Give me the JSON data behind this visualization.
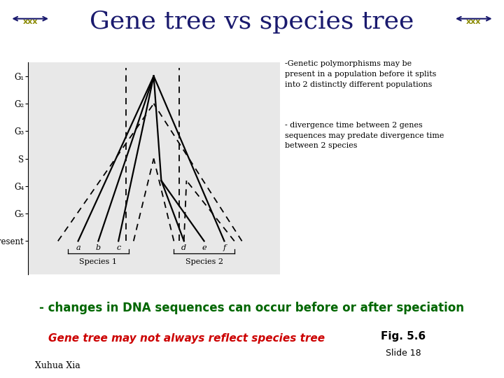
{
  "title": "Gene tree vs species tree",
  "title_color": "#1a1a6e",
  "title_fontsize": 26,
  "bg_color": "#ffffff",
  "teal_bar_color": "#008080",
  "purple_bar_color": "#9400a8",
  "bottom_text_green": "- changes in DNA sequences can occur before or after speciation",
  "bottom_text_red": "Gene tree may not always reflect species tree",
  "fig_label": "Fig. 5.6",
  "slide_label": "Slide 18",
  "author": "Xuhua Xia",
  "annotation1": "-Genetic polymorphisms may be\npresent in a population before it splits\ninto 2 distinctly different populations",
  "annotation2": "- divergence time between 2 genes\nsequences may predate divergence time\nbetween 2 species",
  "ytick_labels": [
    "G₁",
    "G₂",
    "G₃",
    "S",
    "G₄",
    "G₅",
    "Present"
  ],
  "ytick_values": [
    6,
    5,
    4,
    3,
    2,
    1,
    0
  ],
  "species1_label": "Species 1",
  "species2_label": "Species 2",
  "abc_labels": [
    "a",
    "b",
    "c"
  ],
  "def_labels": [
    "d",
    "e",
    "f"
  ],
  "diagram_bg": "#e8e8e8"
}
